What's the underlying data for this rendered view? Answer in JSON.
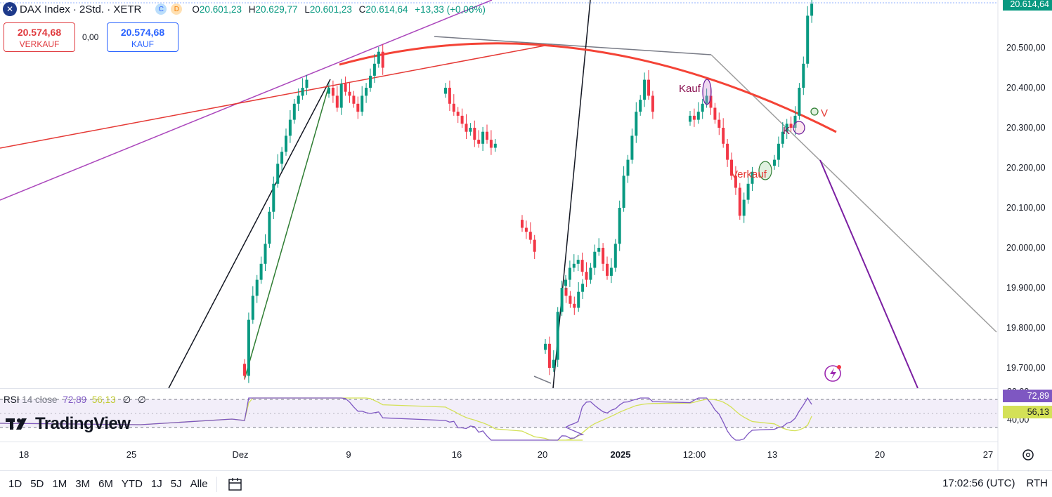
{
  "header": {
    "title": "DAX Index · 2Std. · XETR",
    "badge_c": "C",
    "badge_d": "D",
    "ohlc": [
      {
        "k": "O",
        "v": "20.601,23"
      },
      {
        "k": "H",
        "v": "20.629,77"
      },
      {
        "k": "L",
        "v": "20.601,23"
      },
      {
        "k": "C",
        "v": "20.614,64"
      }
    ],
    "change": "+13,33 (+0,06%)"
  },
  "trade": {
    "sell_price": "20.574,68",
    "sell_label": "VERKAUF",
    "spread": "0,00",
    "buy_price": "20.574,68",
    "buy_label": "KAUF"
  },
  "rsi": {
    "label": "RSI",
    "params": "14 close",
    "value": "72,89",
    "ma_value": "56,13",
    "tag_value": "72,89",
    "tag_ma": "56,13",
    "axis_label": "40,00",
    "axis_top_label": "80,00"
  },
  "logo": "TradingView",
  "annotations": {
    "kauf": "Kauf",
    "verkauf": "Verkauf",
    "k": "K",
    "v": "V"
  },
  "bottom_bar": {
    "timeframes": [
      "1D",
      "5D",
      "1M",
      "3M",
      "6M",
      "YTD",
      "1J",
      "5J",
      "Alle"
    ],
    "time": "17:02:56 (UTC)",
    "session": "RTH"
  },
  "colors": {
    "up": "#089981",
    "down": "#f23645",
    "rsi_line": "#7e57c2",
    "rsi_ma": "#d4e157",
    "accent_blue": "#2962ff"
  },
  "chart_data": {
    "type": "candlestick",
    "title": "DAX Index · 2Std. · XETR",
    "price_axis_ticks": [
      "20.500,00",
      "20.400,00",
      "20.300,00",
      "20.200,00",
      "20.100,00",
      "20.000,00",
      "19.900,00",
      "19.800,00",
      "19.700,00"
    ],
    "last_price_label": "20.614,64",
    "ylim": [
      19650,
      20640
    ],
    "time_axis_labels": [
      "18",
      "25",
      "Dez",
      "9",
      "16",
      "20",
      "2025",
      "12:00",
      "13",
      "20",
      "27"
    ],
    "candles_close_approx": [
      {
        "seg": "Dez rally",
        "values": [
          19680,
          19820,
          19880,
          19920,
          19960,
          20010,
          20090,
          20160,
          20210,
          20240,
          20280,
          20320,
          20360,
          20380,
          20400,
          20420
        ]
      },
      {
        "seg": "mid Dez top",
        "values": [
          20400,
          20380,
          20350,
          20410,
          20390,
          20380,
          20360,
          20340,
          20380,
          20400,
          20430,
          20460,
          20490,
          20450
        ]
      },
      {
        "seg": "pullback",
        "values": [
          20400,
          20360,
          20340,
          20330,
          20310,
          20290,
          20300,
          20270,
          20260,
          20290,
          20270,
          20250,
          20260
        ]
      },
      {
        "seg": "gap down",
        "values": [
          20050,
          20040,
          20020,
          19990
        ]
      },
      {
        "seg": "low",
        "values": [
          19760,
          19700,
          19720,
          19840,
          19900,
          19880,
          19860,
          19850,
          19890,
          19910
        ]
      },
      {
        "seg": "Jan rally",
        "values": [
          19920,
          19950,
          19960,
          19970,
          19940,
          19920,
          19950,
          19990,
          20000,
          19960,
          19930,
          19950,
          20010,
          20100,
          20180,
          20220,
          20280,
          20340,
          20370,
          20420,
          20380,
          20340
        ]
      },
      {
        "seg": "Jan mid",
        "values": [
          20330,
          20320,
          20340,
          20360,
          20380,
          20350,
          20320,
          20300,
          20260,
          20220,
          20180,
          20150,
          20080,
          20120,
          20160,
          20190
        ]
      },
      {
        "seg": "breakout",
        "values": [
          20220,
          20260,
          20290,
          20310,
          20300,
          20330,
          20400,
          20460,
          20580,
          20610
        ]
      }
    ],
    "rsi_last": 72.89,
    "rsi_ma_last": 56.13
  }
}
